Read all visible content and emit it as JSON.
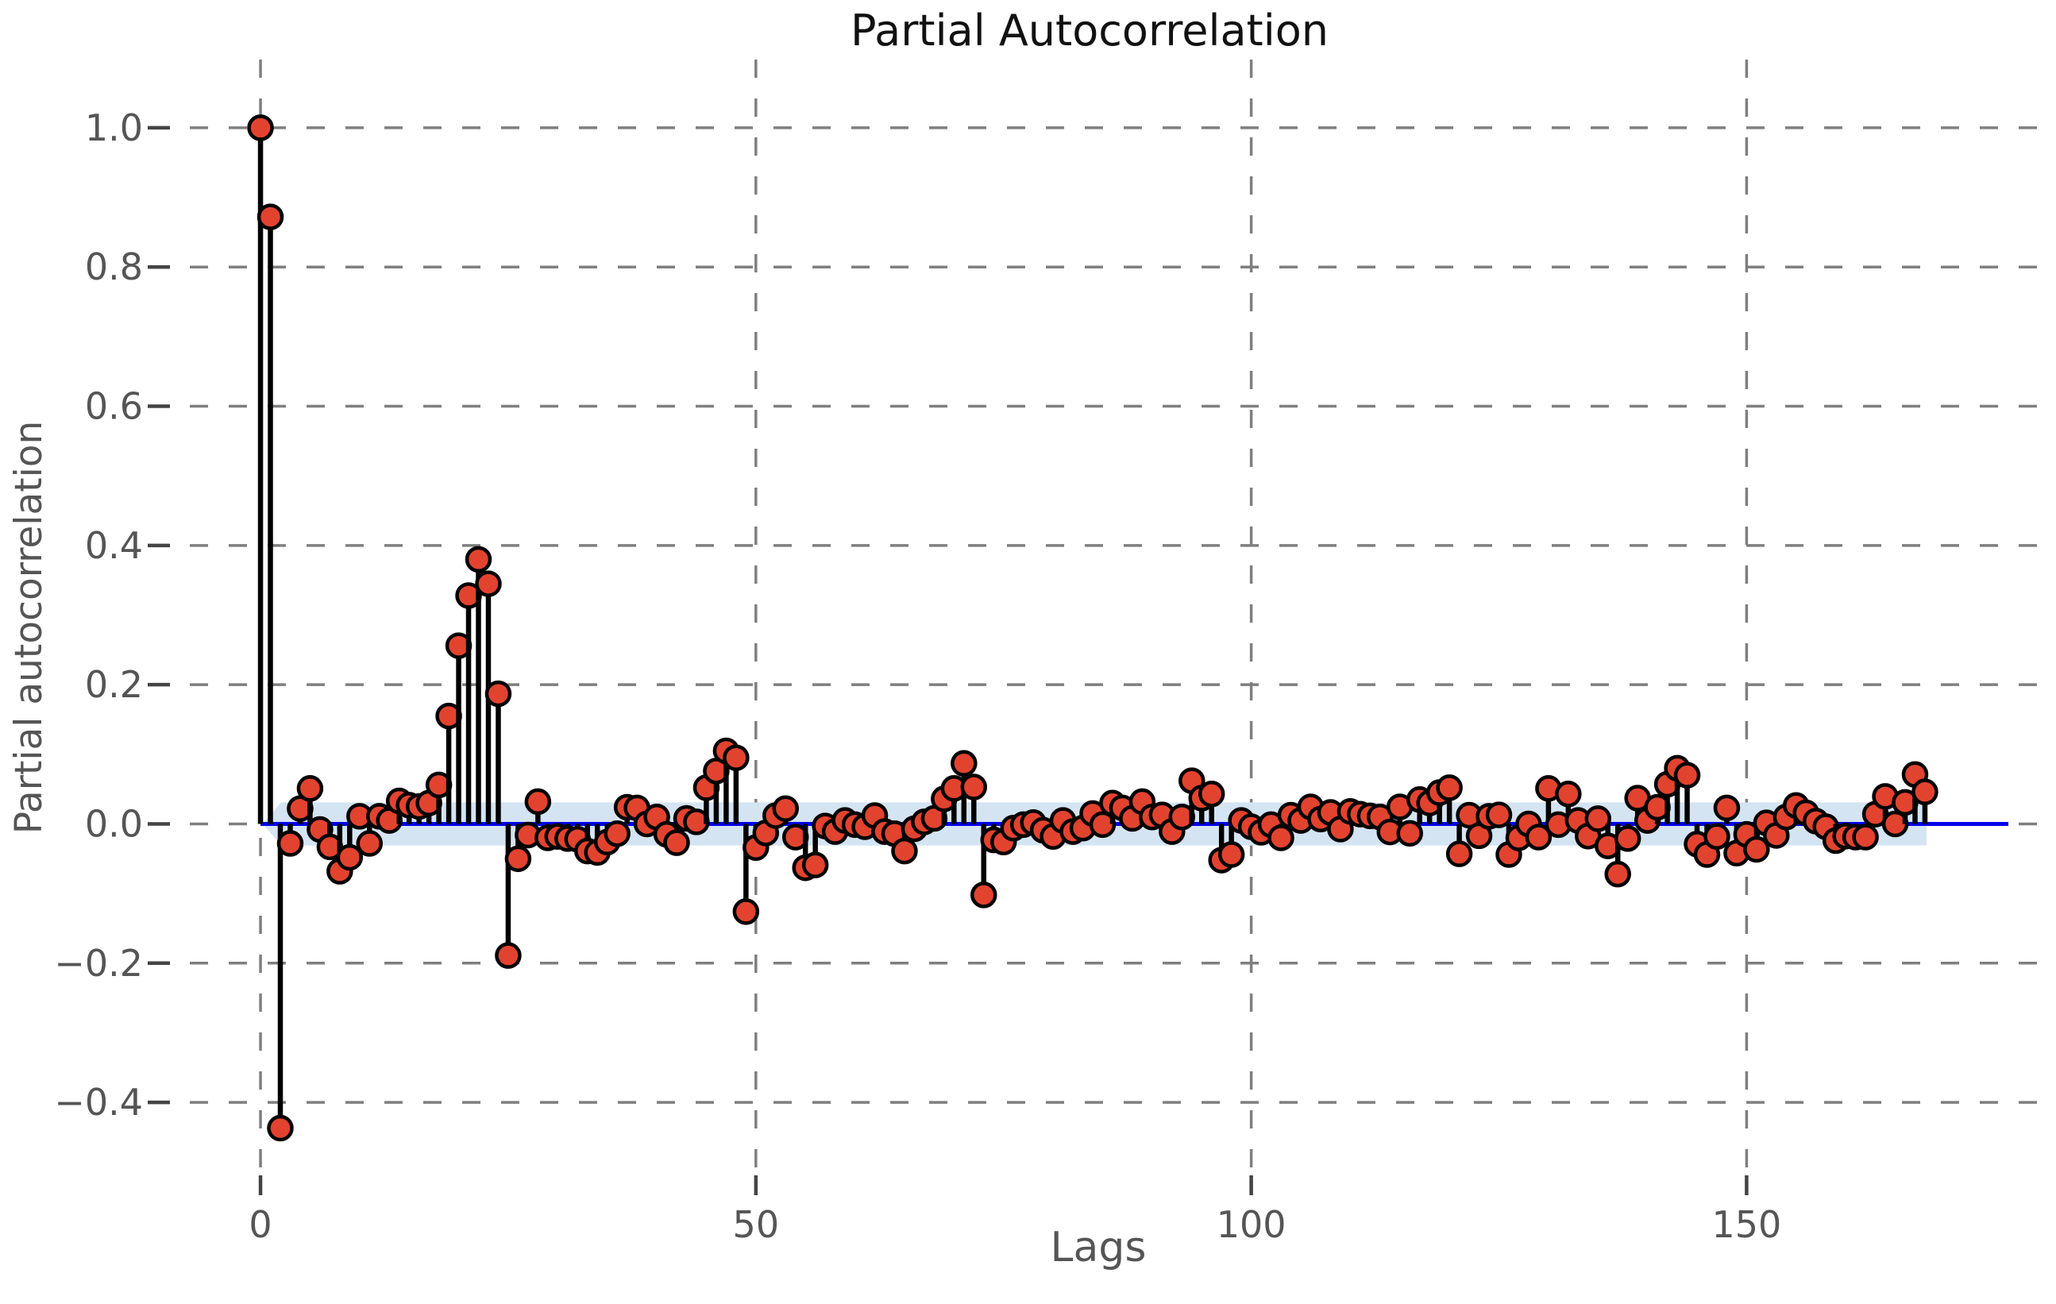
{
  "title": "Partial Autocorrelation",
  "axes": {
    "xlabel": "Lags",
    "ylabel": "Partial autocorrelation"
  },
  "chart_data": {
    "type": "stem",
    "title": "Partial Autocorrelation",
    "xlabel": "Lags",
    "ylabel": "Partial autocorrelation",
    "lag_start": 0,
    "lag_end": 168,
    "values": [
      1.0,
      0.872,
      -0.437,
      -0.028,
      0.022,
      0.051,
      -0.008,
      -0.033,
      -0.068,
      -0.048,
      0.011,
      -0.028,
      0.011,
      0.005,
      0.033,
      0.027,
      0.025,
      0.03,
      0.056,
      0.155,
      0.256,
      0.328,
      0.38,
      0.345,
      0.187,
      -0.189,
      -0.05,
      -0.016,
      0.032,
      -0.02,
      -0.018,
      -0.021,
      -0.022,
      -0.039,
      -0.041,
      -0.026,
      -0.014,
      0.024,
      0.023,
      0.0,
      0.01,
      -0.015,
      -0.027,
      0.008,
      0.003,
      0.052,
      0.076,
      0.105,
      0.095,
      -0.126,
      -0.034,
      -0.013,
      0.012,
      0.022,
      -0.019,
      -0.063,
      -0.059,
      -0.003,
      -0.011,
      0.005,
      -0.001,
      -0.004,
      0.012,
      -0.011,
      -0.014,
      -0.039,
      -0.007,
      0.003,
      0.008,
      0.036,
      0.051,
      0.087,
      0.053,
      -0.102,
      -0.023,
      -0.026,
      -0.006,
      -0.001,
      0.002,
      -0.009,
      -0.018,
      0.005,
      -0.011,
      -0.006,
      0.015,
      -0.001,
      0.03,
      0.023,
      0.008,
      0.032,
      0.01,
      0.013,
      -0.011,
      0.01,
      0.062,
      0.037,
      0.043,
      -0.052,
      -0.044,
      0.005,
      -0.004,
      -0.012,
      -0.001,
      -0.02,
      0.0125,
      0.005,
      0.0245,
      0.007,
      0.0165,
      -0.0075,
      0.018,
      0.014,
      0.0115,
      0.01,
      -0.0115,
      0.0245,
      -0.0135,
      0.035,
      0.03,
      0.045,
      0.052,
      -0.043,
      0.0125,
      -0.017,
      0.011,
      0.013,
      -0.044,
      -0.02,
      0.0,
      -0.019,
      0.051,
      -0.001,
      0.043,
      0.005,
      -0.0175,
      0.0075,
      -0.0315,
      -0.072,
      -0.021,
      0.037,
      0.005,
      0.024,
      0.057,
      0.08,
      0.07,
      -0.029,
      -0.044,
      -0.018,
      0.023,
      -0.042,
      -0.015,
      -0.0365,
      0.0015,
      -0.0165,
      0.01,
      0.0265,
      0.016,
      0.004,
      -0.004,
      -0.024,
      -0.0175,
      -0.019,
      -0.019,
      0.014,
      0.0395,
      0.0,
      0.031,
      0.071,
      0.046
    ],
    "xticks": [
      0,
      50,
      100,
      150
    ],
    "xtick_labels": [
      "0",
      "50",
      "100",
      "150"
    ],
    "yticks": [
      1.0,
      0.8,
      0.6,
      0.4,
      0.2,
      0.0,
      -0.2,
      -0.4
    ],
    "ytick_labels": [
      "1.0",
      "0.8",
      "0.6",
      "0.4",
      "0.2",
      "0.0",
      "−0.2",
      "−0.4"
    ],
    "xlim": [
      -8.5,
      176.5
    ],
    "ylim": [
      -0.482,
      1.098
    ],
    "grid": true,
    "grid_style": "dashed",
    "legend": false,
    "zero_line": 0.0,
    "confidence_band_halfwidth": 0.031,
    "colors": {
      "marker_fill": "#e2432f",
      "marker_edge": "#000000",
      "stem": "#000000",
      "zero_line": "#0000ee",
      "confidence_band": "#d4e4f2",
      "grid": "#7f7f7f",
      "tick_mark": "#444444",
      "tick_text": "#555555",
      "title_text": "#111111"
    }
  }
}
